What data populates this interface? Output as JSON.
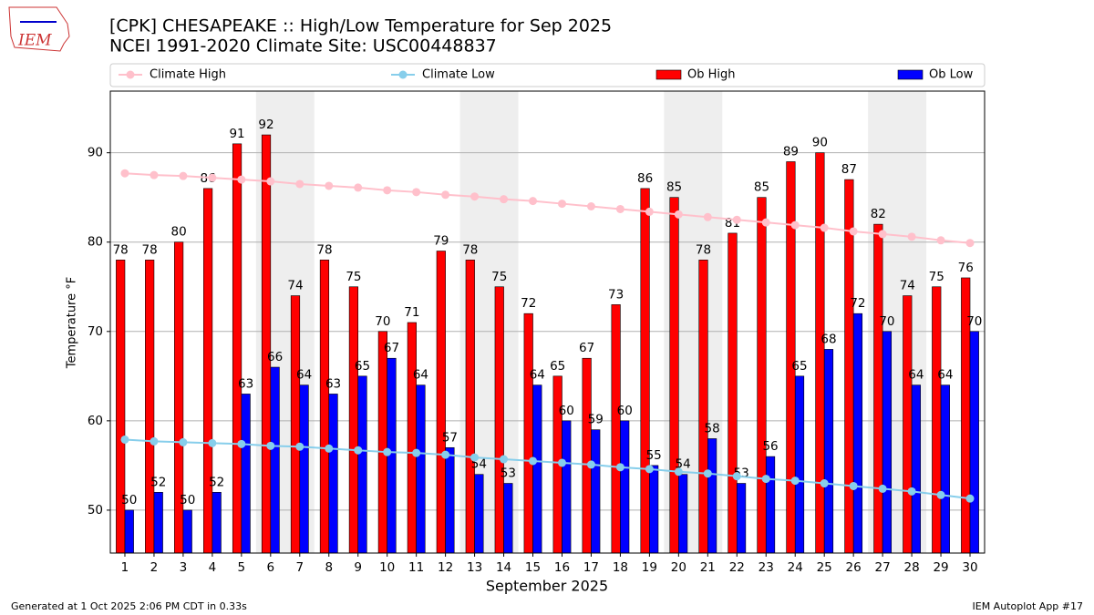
{
  "logo": "IEM",
  "footer_left": "Generated at 1 Oct 2025 2:06 PM CDT in 0.33s",
  "footer_right": "IEM Autoplot App #17",
  "chart_data": {
    "type": "bar",
    "title": "[CPK] CHESAPEAKE :: High/Low Temperature for Sep 2025",
    "subtitle": "NCEI 1991-2020 Climate Site: USC00448837",
    "x_label": "September 2025",
    "y_label": "Temperature °F",
    "categories": [
      "1",
      "2",
      "3",
      "4",
      "5",
      "6",
      "7",
      "8",
      "9",
      "10",
      "11",
      "12",
      "13",
      "14",
      "15",
      "16",
      "17",
      "18",
      "19",
      "20",
      "21",
      "22",
      "23",
      "24",
      "25",
      "26",
      "27",
      "28",
      "29",
      "30"
    ],
    "series": [
      {
        "name": "Climate High",
        "type": "line",
        "color": "#ffc0cb",
        "values": [
          87.7,
          87.5,
          87.4,
          87.2,
          87.0,
          86.8,
          86.5,
          86.3,
          86.1,
          85.8,
          85.6,
          85.3,
          85.1,
          84.8,
          84.6,
          84.3,
          84.0,
          83.7,
          83.4,
          83.1,
          82.8,
          82.5,
          82.2,
          81.9,
          81.6,
          81.2,
          80.9,
          80.6,
          80.2,
          79.9
        ]
      },
      {
        "name": "Climate Low",
        "type": "line",
        "color": "#87ceeb",
        "values": [
          57.9,
          57.7,
          57.6,
          57.5,
          57.4,
          57.2,
          57.1,
          56.9,
          56.7,
          56.5,
          56.4,
          56.2,
          55.9,
          55.7,
          55.5,
          55.3,
          55.1,
          54.8,
          54.6,
          54.3,
          54.1,
          53.8,
          53.5,
          53.3,
          53.0,
          52.7,
          52.4,
          52.1,
          51.7,
          51.3
        ]
      },
      {
        "name": "Ob High",
        "type": "bar",
        "color": "#ff0000",
        "values": [
          78,
          78,
          80,
          86,
          91,
          92,
          74,
          78,
          75,
          70,
          71,
          79,
          78,
          75,
          72,
          65,
          67,
          73,
          86,
          85,
          78,
          81,
          85,
          89,
          90,
          87,
          82,
          74,
          75,
          76
        ]
      },
      {
        "name": "Ob Low",
        "type": "bar",
        "color": "#0000ff",
        "values": [
          50,
          52,
          50,
          52,
          63,
          66,
          64,
          63,
          65,
          67,
          64,
          57,
          54,
          53,
          64,
          60,
          59,
          60,
          55,
          54,
          58,
          53,
          56,
          65,
          68,
          72,
          70,
          64,
          64,
          70
        ]
      }
    ],
    "ylim": [
      45.2,
      96.9
    ],
    "yticks": [
      50,
      60,
      70,
      80,
      90
    ],
    "grid": true
  }
}
